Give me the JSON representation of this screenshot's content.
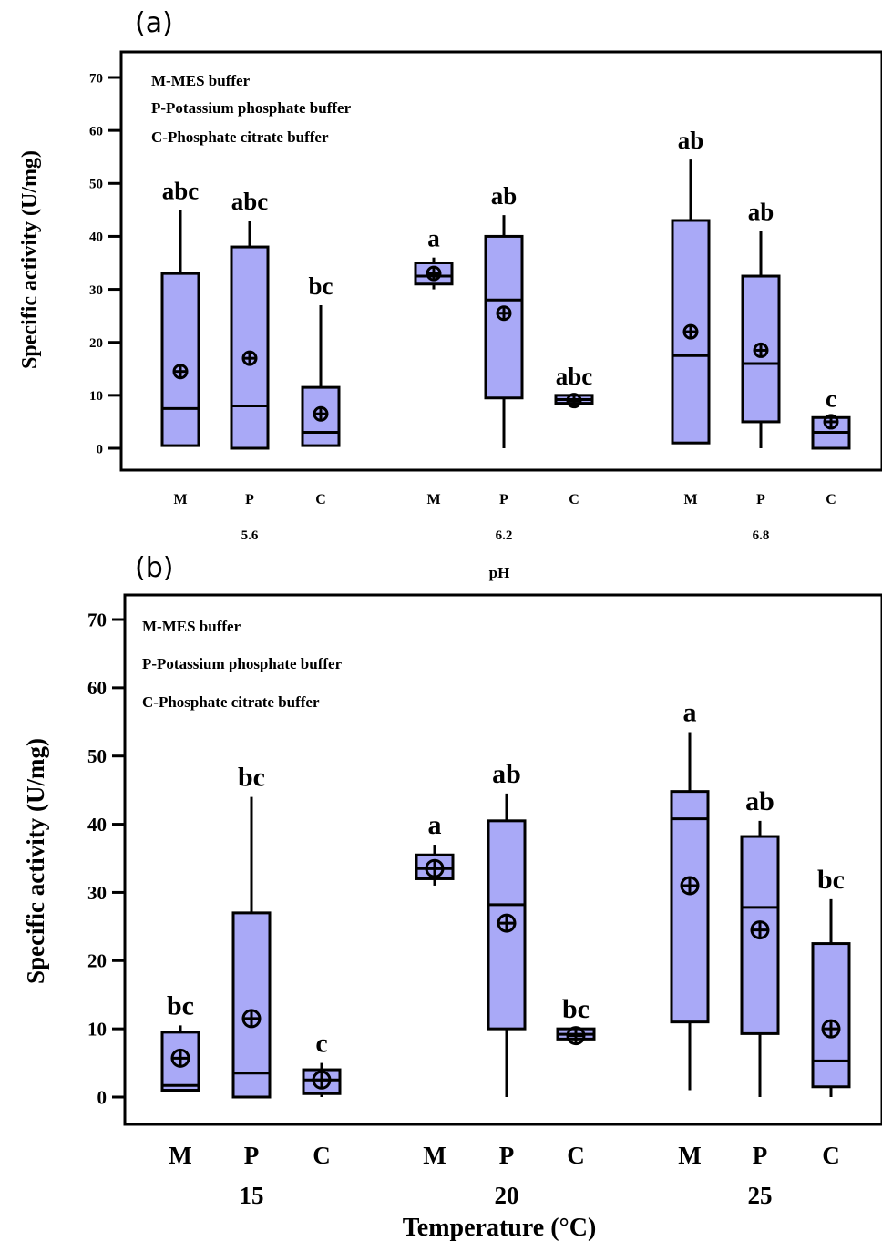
{
  "chart_data": [
    {
      "type": "box",
      "panel_label": "(a)",
      "xlabel": "pH",
      "ylabel": "Specific activity (U/mg)",
      "ylim": [
        -3,
        75
      ],
      "yticks": [
        0,
        10,
        20,
        30,
        40,
        50,
        60,
        70
      ],
      "legend": [
        "M-MES buffer",
        "P-Potassium phosphate buffer",
        "C-Phosphate citrate buffer"
      ],
      "legend_position": "top-left",
      "groups": [
        "5.6",
        "6.2",
        "6.8"
      ],
      "categories": [
        "M",
        "P",
        "C"
      ],
      "boxes": [
        {
          "group": "5.6",
          "buffer": "M",
          "min": 0.5,
          "q1": 0.5,
          "median": 7.5,
          "q3": 33,
          "max": 45,
          "mean": 14.5,
          "label": "abc"
        },
        {
          "group": "5.6",
          "buffer": "P",
          "min": 0,
          "q1": 0,
          "median": 8,
          "q3": 38,
          "max": 43,
          "mean": 17,
          "label": "abc"
        },
        {
          "group": "5.6",
          "buffer": "C",
          "min": 0.5,
          "q1": 0.5,
          "median": 3,
          "q3": 11.5,
          "max": 27,
          "mean": 6.5,
          "label": "bc"
        },
        {
          "group": "6.2",
          "buffer": "M",
          "min": 30,
          "q1": 31,
          "median": 32.5,
          "q3": 35,
          "max": 36,
          "mean": 33,
          "label": "a"
        },
        {
          "group": "6.2",
          "buffer": "P",
          "min": 0,
          "q1": 9.5,
          "median": 28,
          "q3": 40,
          "max": 44,
          "mean": 25.5,
          "label": "ab"
        },
        {
          "group": "6.2",
          "buffer": "C",
          "min": 8.5,
          "q1": 8.5,
          "median": 9.2,
          "q3": 10,
          "max": 10,
          "mean": 9,
          "label": "abc"
        },
        {
          "group": "6.8",
          "buffer": "M",
          "min": 1,
          "q1": 1,
          "median": 17.5,
          "q3": 43,
          "max": 54.5,
          "mean": 22,
          "label": "ab"
        },
        {
          "group": "6.8",
          "buffer": "P",
          "min": 0,
          "q1": 5,
          "median": 16,
          "q3": 32.5,
          "max": 41,
          "mean": 18.5,
          "label": "ab"
        },
        {
          "group": "6.8",
          "buffer": "C",
          "min": 0,
          "q1": 0,
          "median": 3,
          "q3": 5.8,
          "max": 5.8,
          "mean": 5,
          "label": "c"
        }
      ]
    },
    {
      "type": "box",
      "panel_label": "(b)",
      "xlabel": "Temperature (°C)",
      "ylabel": "Specific activity (U/mg)",
      "ylim": [
        -3,
        75
      ],
      "yticks": [
        0,
        10,
        20,
        30,
        40,
        50,
        60,
        70
      ],
      "legend": [
        "M-MES buffer",
        "P-Potassium phosphate buffer",
        "C-Phosphate citrate buffer"
      ],
      "legend_position": "top-left",
      "groups": [
        "15",
        "20",
        "25"
      ],
      "categories": [
        "M",
        "P",
        "C"
      ],
      "boxes": [
        {
          "group": "15",
          "buffer": "M",
          "min": 1,
          "q1": 1,
          "median": 1.7,
          "q3": 9.5,
          "max": 10.5,
          "mean": 5.7,
          "label": "bc"
        },
        {
          "group": "15",
          "buffer": "P",
          "min": 0,
          "q1": 0,
          "median": 3.5,
          "q3": 27,
          "max": 44,
          "mean": 11.5,
          "label": "bc"
        },
        {
          "group": "15",
          "buffer": "C",
          "min": 0,
          "q1": 0.5,
          "median": 2.5,
          "q3": 4,
          "max": 5,
          "mean": 2.5,
          "label": "c"
        },
        {
          "group": "20",
          "buffer": "M",
          "min": 31,
          "q1": 32,
          "median": 33.5,
          "q3": 35.5,
          "max": 37,
          "mean": 33.5,
          "label": "a"
        },
        {
          "group": "20",
          "buffer": "P",
          "min": 0,
          "q1": 10,
          "median": 28.2,
          "q3": 40.5,
          "max": 44.5,
          "mean": 25.5,
          "label": "ab"
        },
        {
          "group": "20",
          "buffer": "C",
          "min": 8.5,
          "q1": 8.5,
          "median": 9.2,
          "q3": 10,
          "max": 10,
          "mean": 9,
          "label": "bc"
        },
        {
          "group": "25",
          "buffer": "M",
          "min": 1,
          "q1": 11,
          "median": 40.8,
          "q3": 44.8,
          "max": 53.5,
          "mean": 31,
          "label": "a"
        },
        {
          "group": "25",
          "buffer": "P",
          "min": 0,
          "q1": 9.3,
          "median": 27.8,
          "q3": 38.2,
          "max": 40.5,
          "mean": 24.5,
          "label": "ab"
        },
        {
          "group": "25",
          "buffer": "C",
          "min": 0,
          "q1": 1.5,
          "median": 5.3,
          "q3": 22.5,
          "max": 29,
          "mean": 10,
          "label": "bc"
        }
      ]
    }
  ]
}
